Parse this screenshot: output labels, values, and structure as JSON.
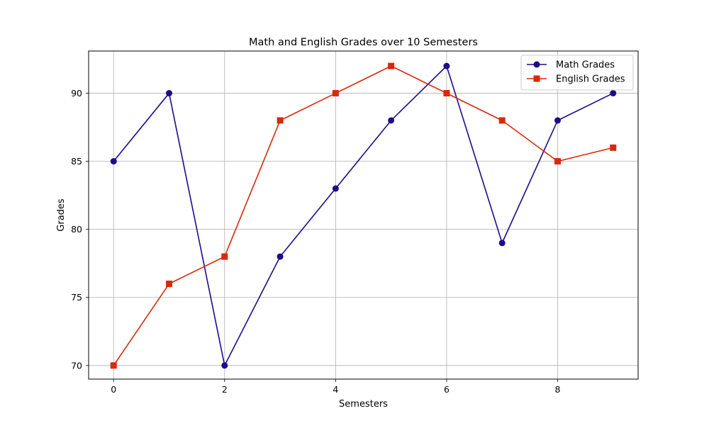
{
  "chart_data": {
    "type": "line",
    "title": "Math and English Grades over 10 Semesters",
    "xlabel": "Semesters",
    "ylabel": "Grades",
    "x": [
      0,
      1,
      2,
      3,
      4,
      5,
      6,
      7,
      8,
      9
    ],
    "xlim": [
      -0.45,
      9.45
    ],
    "ylim": [
      69.0,
      93.1
    ],
    "xticks": [
      0,
      2,
      4,
      6,
      8
    ],
    "yticks": [
      70,
      75,
      80,
      85,
      90
    ],
    "grid": true,
    "legend_position": "top-right",
    "series": [
      {
        "name": "Math Grades",
        "values": [
          85,
          90,
          70,
          78,
          83,
          88,
          92,
          79,
          88,
          90
        ],
        "color": "#1f0a8c",
        "marker": "circle"
      },
      {
        "name": "English Grades",
        "values": [
          70,
          76,
          78,
          88,
          90,
          92,
          90,
          88,
          85,
          86
        ],
        "color": "#d62a0b",
        "marker": "square"
      }
    ]
  }
}
